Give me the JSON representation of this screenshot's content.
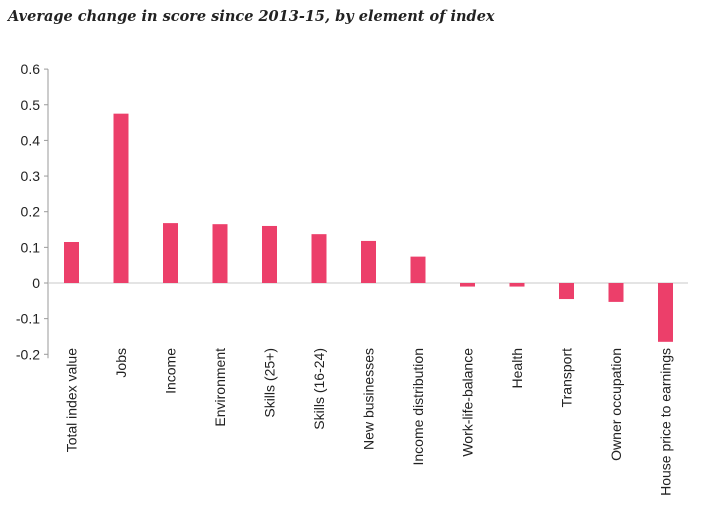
{
  "chart_data": {
    "type": "bar",
    "title": "Average change in score since 2013-15, by element of index",
    "xlabel": "",
    "ylabel": "",
    "ylim": [
      -0.2,
      0.6
    ],
    "yticks": [
      0.6,
      0.5,
      0.4,
      0.3,
      0.2,
      0.1,
      0,
      -0.1,
      -0.2
    ],
    "ytick_labels": [
      "0.6",
      "0.5",
      "0.4",
      "0.3",
      "0.2",
      "0.1",
      "0",
      "-0.1",
      "-0.2"
    ],
    "grid": false,
    "legend": "none",
    "bar_color": "#ec3f6a",
    "categories": [
      "Total index value",
      "Jobs",
      "Income",
      "Environment",
      "Skills (25+)",
      "Skills (16-24)",
      "New businesses",
      "Income distribution",
      "Work-life-balance",
      "Health",
      "Transport",
      "Owner occupation",
      "House price to earnings"
    ],
    "values": [
      0.115,
      0.475,
      0.168,
      0.165,
      0.16,
      0.137,
      0.118,
      0.074,
      -0.01,
      -0.01,
      -0.045,
      -0.053,
      -0.165
    ]
  }
}
